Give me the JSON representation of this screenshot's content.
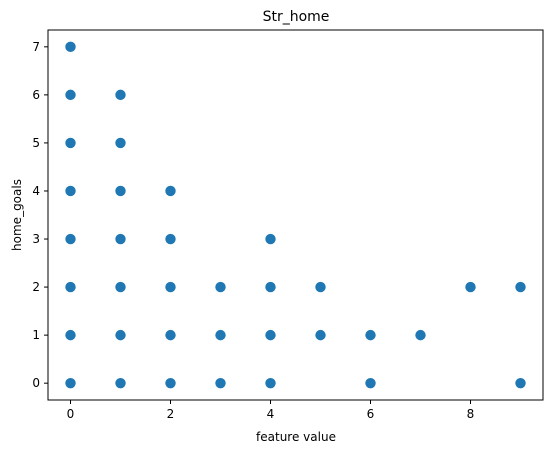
{
  "chart_data": {
    "type": "scatter",
    "title": "Str_home",
    "xlabel": "feature value",
    "ylabel": "home_goals",
    "xlim": [
      -0.45,
      9.45
    ],
    "ylim": [
      -0.35,
      7.35
    ],
    "xticks": [
      0,
      2,
      4,
      6,
      8
    ],
    "yticks": [
      0,
      1,
      2,
      3,
      4,
      5,
      6,
      7
    ],
    "grid": false,
    "color": "#1f77b4",
    "points": [
      {
        "x": 0,
        "y": 0
      },
      {
        "x": 0,
        "y": 1
      },
      {
        "x": 0,
        "y": 2
      },
      {
        "x": 0,
        "y": 3
      },
      {
        "x": 0,
        "y": 4
      },
      {
        "x": 0,
        "y": 5
      },
      {
        "x": 0,
        "y": 6
      },
      {
        "x": 0,
        "y": 7
      },
      {
        "x": 1,
        "y": 0
      },
      {
        "x": 1,
        "y": 1
      },
      {
        "x": 1,
        "y": 2
      },
      {
        "x": 1,
        "y": 3
      },
      {
        "x": 1,
        "y": 4
      },
      {
        "x": 1,
        "y": 5
      },
      {
        "x": 1,
        "y": 6
      },
      {
        "x": 2,
        "y": 0
      },
      {
        "x": 2,
        "y": 1
      },
      {
        "x": 2,
        "y": 2
      },
      {
        "x": 2,
        "y": 3
      },
      {
        "x": 2,
        "y": 4
      },
      {
        "x": 3,
        "y": 0
      },
      {
        "x": 3,
        "y": 1
      },
      {
        "x": 3,
        "y": 2
      },
      {
        "x": 4,
        "y": 0
      },
      {
        "x": 4,
        "y": 1
      },
      {
        "x": 4,
        "y": 2
      },
      {
        "x": 4,
        "y": 3
      },
      {
        "x": 5,
        "y": 1
      },
      {
        "x": 5,
        "y": 2
      },
      {
        "x": 6,
        "y": 0
      },
      {
        "x": 6,
        "y": 1
      },
      {
        "x": 7,
        "y": 1
      },
      {
        "x": 8,
        "y": 2
      },
      {
        "x": 9,
        "y": 0
      },
      {
        "x": 9,
        "y": 2
      }
    ]
  }
}
